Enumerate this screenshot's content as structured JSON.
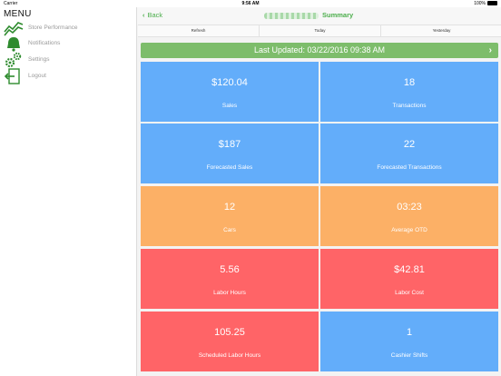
{
  "status": {
    "carrier": "Carrier",
    "time": "9:56 AM",
    "battery": "100%"
  },
  "sidebar": {
    "title": "MENU",
    "items": [
      {
        "label": "Store Performance",
        "icon": "chart-line-icon"
      },
      {
        "label": "Notifications",
        "icon": "bell-icon"
      },
      {
        "label": "Settings",
        "icon": "gears-icon"
      },
      {
        "label": "Logout",
        "icon": "logout-icon"
      }
    ]
  },
  "navbar": {
    "back_label": "Back",
    "title": "Summary"
  },
  "segments": [
    "Refresh",
    "Today",
    "Yesterday"
  ],
  "updated": {
    "text": "Last Updated: 03/22/2016 09:38 AM"
  },
  "tiles": [
    {
      "value": "$120.04",
      "label": "Sales",
      "color": "#63adfa"
    },
    {
      "value": "18",
      "label": "Transactions",
      "color": "#63adfa"
    },
    {
      "value": "$187",
      "label": "Forecasted Sales",
      "color": "#63adfa"
    },
    {
      "value": "22",
      "label": "Forecasted Transactions",
      "color": "#63adfa"
    },
    {
      "value": "12",
      "label": "Cars",
      "color": "#fcb066"
    },
    {
      "value": "03:23",
      "label": "Average OTD",
      "color": "#fcb066"
    },
    {
      "value": "5.56",
      "label": "Labor Hours",
      "color": "#ff6467"
    },
    {
      "value": "$42.81",
      "label": "Labor Cost",
      "color": "#ff6467"
    },
    {
      "value": "105.25",
      "label": "Scheduled Labor Hours",
      "color": "#ff6467"
    },
    {
      "value": "1",
      "label": "Cashier Shifts",
      "color": "#63adfa"
    }
  ],
  "accent": "#4cae4c"
}
